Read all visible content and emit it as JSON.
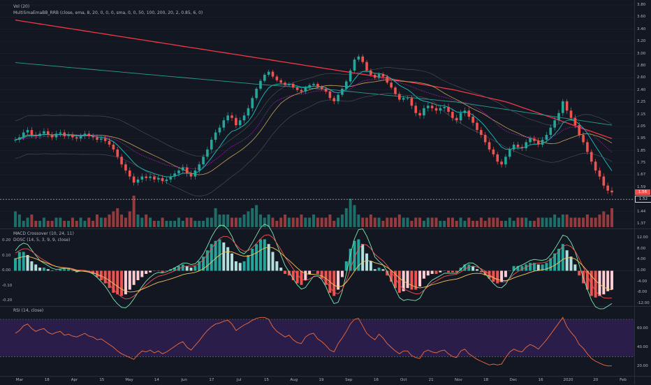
{
  "legends": {
    "main": [
      "Vol (20)",
      "MultiSmaEmaBB_RRB (close, ema, 8, 20, 0, 0, 0, sma, 0, 0, 50, 100, 200, 20, 2, 0.85, 6, 0)"
    ],
    "macd": [
      "MACD Crossover (10, 24, 11)",
      "DOSC (14, 5, 3, 9, 9, close)"
    ],
    "rsi": [
      "RSI (14, close)"
    ]
  },
  "price_axis": [
    "3.80",
    "3.60",
    "3.40",
    "3.20",
    "3.00",
    "2.80",
    "2.60",
    "2.40",
    "2.25",
    "2.15",
    "2.05",
    "1.95",
    "1.85",
    "1.75",
    "1.67",
    "1.59",
    "1.52",
    "1.44",
    "1.37"
  ],
  "price_tags": [
    {
      "label": "1.56",
      "color": "#ef5350"
    },
    {
      "label": "1.52",
      "color": "#131722"
    }
  ],
  "macd_left_axis": [
    "0.20",
    "0.10",
    "0.00",
    "-0.10",
    "-0.20"
  ],
  "macd_right_axis": [
    "12.00",
    "8.00",
    "4.00",
    "0.00",
    "-4.00",
    "-8.00",
    "-12.00"
  ],
  "rsi_axis": [
    "60.00",
    "40.00",
    "20.00"
  ],
  "date_axis": [
    "Mar",
    "18",
    "Apr",
    "15",
    "May",
    "14",
    "Jun",
    "17",
    "Jul",
    "15",
    "Aug",
    "19",
    "Sep",
    "16",
    "Oct",
    "21",
    "Nov",
    "18",
    "Dec",
    "16",
    "2020",
    "20",
    "Feb"
  ],
  "colors": {
    "bull": "#26a69a",
    "bear": "#ef5350",
    "ma200": "#f23645",
    "ma100": "#2a9d8f",
    "ma50": "#c9a25a",
    "rsi": "#ef6c3a",
    "rsi_band": "#2a1d4a"
  },
  "chart_data": {
    "type": "candlestick",
    "close": [
      1.94,
      1.96,
      2.0,
      2.02,
      1.98,
      1.97,
      1.99,
      2.01,
      1.98,
      1.96,
      1.99,
      2.0,
      1.97,
      1.98,
      1.96,
      1.95,
      1.97,
      1.99,
      1.97,
      1.96,
      1.94,
      1.95,
      1.93,
      1.9,
      1.86,
      1.8,
      1.74,
      1.7,
      1.66,
      1.62,
      1.64,
      1.66,
      1.65,
      1.66,
      1.64,
      1.65,
      1.63,
      1.64,
      1.66,
      1.68,
      1.7,
      1.72,
      1.68,
      1.66,
      1.7,
      1.74,
      1.8,
      1.86,
      1.94,
      2.0,
      2.04,
      2.1,
      2.14,
      2.12,
      2.06,
      2.1,
      2.14,
      2.2,
      2.3,
      2.42,
      2.55,
      2.65,
      2.7,
      2.62,
      2.56,
      2.52,
      2.48,
      2.5,
      2.44,
      2.4,
      2.38,
      2.44,
      2.48,
      2.5,
      2.45,
      2.42,
      2.38,
      2.3,
      2.26,
      2.34,
      2.42,
      2.54,
      2.72,
      2.9,
      2.95,
      2.86,
      2.72,
      2.65,
      2.6,
      2.66,
      2.62,
      2.52,
      2.44,
      2.35,
      2.28,
      2.3,
      2.3,
      2.22,
      2.16,
      2.14,
      2.2,
      2.22,
      2.2,
      2.18,
      2.2,
      2.21,
      2.17,
      2.12,
      2.1,
      2.16,
      2.18,
      2.13,
      2.08,
      2.02,
      1.98,
      1.92,
      1.86,
      1.82,
      1.76,
      1.74,
      1.8,
      1.86,
      1.9,
      1.88,
      1.87,
      1.92,
      1.95,
      1.93,
      1.9,
      1.94,
      1.98,
      2.04,
      2.1,
      2.16,
      2.26,
      2.18,
      2.12,
      2.06,
      1.98,
      1.92,
      1.84,
      1.76,
      1.7,
      1.66,
      1.6,
      1.57,
      1.56
    ],
    "macd_hist": [
      0.08,
      0.12,
      0.12,
      0.1,
      0.06,
      0.04,
      0.02,
      0.02,
      0.01,
      0.0,
      0.0,
      0.01,
      0.01,
      0.01,
      0.0,
      -0.01,
      0.0,
      0.0,
      -0.01,
      -0.02,
      -0.04,
      -0.06,
      -0.08,
      -0.11,
      -0.14,
      -0.15,
      -0.16,
      -0.15,
      -0.12,
      -0.09,
      -0.06,
      -0.04,
      -0.02,
      -0.01,
      0.0,
      0.0,
      -0.01,
      0.0,
      0.01,
      0.02,
      0.03,
      0.04,
      0.03,
      0.02,
      0.03,
      0.06,
      0.09,
      0.13,
      0.17,
      0.19,
      0.2,
      0.18,
      0.15,
      0.11,
      0.06,
      0.05,
      0.06,
      0.1,
      0.14,
      0.17,
      0.2,
      0.2,
      0.17,
      0.12,
      0.06,
      0.02,
      -0.02,
      -0.03,
      -0.06,
      -0.08,
      -0.09,
      -0.06,
      -0.02,
      0.0,
      -0.02,
      -0.05,
      -0.09,
      -0.14,
      -0.16,
      -0.12,
      -0.04,
      0.06,
      0.14,
      0.19,
      0.2,
      0.17,
      0.11,
      0.06,
      0.01,
      0.02,
      0.01,
      -0.03,
      -0.07,
      -0.11,
      -0.14,
      -0.13,
      -0.11,
      -0.12,
      -0.12,
      -0.1,
      -0.05,
      -0.03,
      -0.02,
      -0.02,
      -0.01,
      -0.0,
      -0.01,
      -0.01,
      -0.01,
      0.02,
      0.04,
      0.04,
      0.03,
      0.01,
      -0.01,
      -0.03,
      -0.05,
      -0.07,
      -0.08,
      -0.07,
      -0.04,
      0.0,
      0.03,
      0.03,
      0.03,
      0.04,
      0.05,
      0.05,
      0.04,
      0.04,
      0.05,
      0.08,
      0.11,
      0.14,
      0.17,
      0.13,
      0.09,
      0.04,
      -0.03,
      -0.08,
      -0.12,
      -0.16,
      -0.17,
      -0.16,
      -0.15,
      -0.13,
      -0.12
    ],
    "volume": [
      0.5,
      0.4,
      0.2,
      0.3,
      0.4,
      0.2,
      0.2,
      0.3,
      0.2,
      0.2,
      0.3,
      0.3,
      0.2,
      0.2,
      0.3,
      0.2,
      0.3,
      0.2,
      0.3,
      0.2,
      0.4,
      0.3,
      0.3,
      0.4,
      0.5,
      0.6,
      0.4,
      0.3,
      0.5,
      1.0,
      0.4,
      0.3,
      0.4,
      0.3,
      0.2,
      0.2,
      0.3,
      0.2,
      0.2,
      0.2,
      0.3,
      0.2,
      0.3,
      0.3,
      0.2,
      0.2,
      0.2,
      0.3,
      0.3,
      0.6,
      0.4,
      0.4,
      0.4,
      0.3,
      0.3,
      0.3,
      0.4,
      0.5,
      0.6,
      0.7,
      0.4,
      0.3,
      0.4,
      0.3,
      0.2,
      0.3,
      0.4,
      0.3,
      0.3,
      0.3,
      0.4,
      0.3,
      0.3,
      0.4,
      0.3,
      0.3,
      0.3,
      0.4,
      0.2,
      0.3,
      0.4,
      0.6,
      0.9,
      0.7,
      0.4,
      0.3,
      0.3,
      0.4,
      0.3,
      0.3,
      0.2,
      0.3,
      0.3,
      0.3,
      0.4,
      0.3,
      0.3,
      0.2,
      0.3,
      0.3,
      0.2,
      0.3,
      0.3,
      0.3,
      0.2,
      0.2,
      0.3,
      0.3,
      0.2,
      0.3,
      0.2,
      0.3,
      0.2,
      0.2,
      0.3,
      0.2,
      0.3,
      0.3,
      0.3,
      0.2,
      0.2,
      0.3,
      0.2,
      0.3,
      0.3,
      0.3,
      0.2,
      0.2,
      0.3,
      0.3,
      0.3,
      0.3,
      0.4,
      0.3,
      0.4,
      0.4,
      0.3,
      0.3,
      0.3,
      0.3,
      0.4,
      0.3,
      0.3,
      0.4,
      0.5,
      0.4,
      0.6
    ],
    "rsi": [
      55,
      58,
      63,
      65,
      60,
      57,
      59,
      60,
      56,
      54,
      56,
      57,
      53,
      54,
      52,
      51,
      53,
      55,
      52,
      51,
      48,
      49,
      46,
      43,
      40,
      36,
      33,
      31,
      29,
      27,
      32,
      36,
      35,
      37,
      34,
      36,
      33,
      35,
      38,
      41,
      44,
      46,
      40,
      37,
      42,
      47,
      53,
      58,
      62,
      65,
      66,
      68,
      69,
      65,
      58,
      61,
      64,
      66,
      69,
      71,
      72,
      72,
      70,
      62,
      57,
      54,
      51,
      53,
      48,
      45,
      44,
      51,
      54,
      55,
      49,
      46,
      42,
      37,
      35,
      44,
      50,
      57,
      65,
      70,
      71,
      63,
      55,
      51,
      48,
      54,
      50,
      44,
      40,
      36,
      33,
      36,
      36,
      31,
      29,
      28,
      35,
      37,
      35,
      34,
      36,
      37,
      33,
      30,
      29,
      36,
      38,
      33,
      30,
      27,
      25,
      23,
      21,
      22,
      21,
      22,
      29,
      35,
      38,
      36,
      35,
      40,
      43,
      41,
      38,
      43,
      48,
      54,
      60,
      66,
      72,
      62,
      56,
      51,
      43,
      39,
      33,
      28,
      25,
      23,
      21,
      20,
      20
    ]
  }
}
